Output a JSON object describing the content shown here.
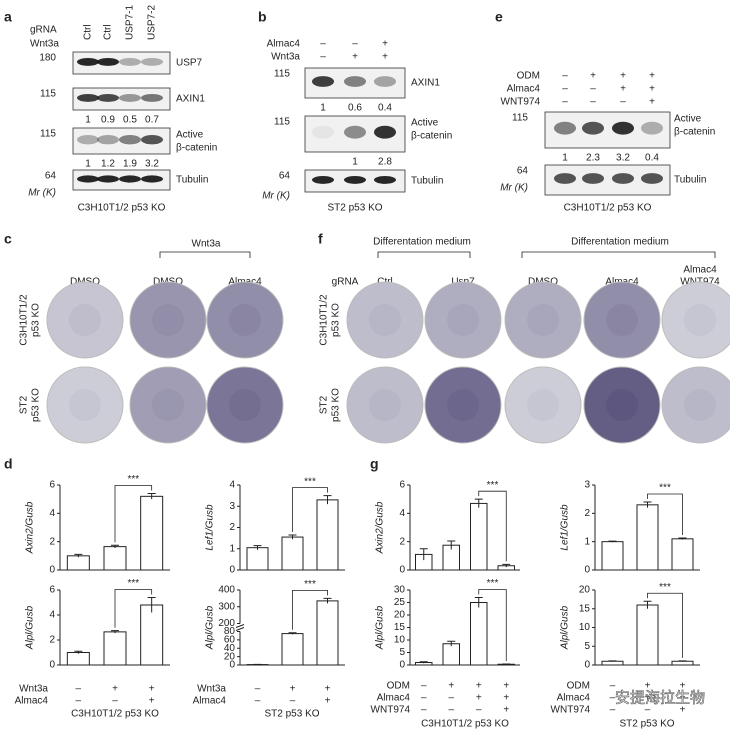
{
  "panel_a": {
    "letter": "a",
    "gRNA_label": "gRNA",
    "lanes": [
      "Ctrl",
      "Ctrl",
      "USP7-1",
      "USP7-2"
    ],
    "treatment_label": "Wnt3a",
    "blots": [
      {
        "marker": 180,
        "protein": "USP7"
      },
      {
        "marker": 115,
        "protein": "AXIN1",
        "quant": [
          1,
          0.9,
          0.5,
          0.7
        ]
      },
      {
        "marker": 115,
        "protein": [
          "Active",
          "β-catenin"
        ],
        "quant": [
          1,
          1.2,
          1.9,
          3.2
        ]
      },
      {
        "marker": 64,
        "protein": "Tubulin"
      }
    ],
    "mr": "Mr (K)",
    "caption": "C3H10T1/2 p53 KO"
  },
  "panel_b": {
    "letter": "b",
    "treatments": [
      {
        "name": "Almac4",
        "signs": [
          "–",
          "–",
          "+"
        ]
      },
      {
        "name": "Wnt3a",
        "signs": [
          "–",
          "+",
          "+"
        ]
      }
    ],
    "blots": [
      {
        "marker": 115,
        "protein": "AXIN1",
        "quant": [
          1,
          0.6,
          0.4
        ]
      },
      {
        "marker": 115,
        "protein": [
          "Active",
          "β-catenin"
        ],
        "quant": [
          null,
          1,
          2.8
        ]
      },
      {
        "marker": 64,
        "protein": "Tubulin"
      }
    ],
    "mr": "Mr (K)",
    "caption": "ST2 p53 KO"
  },
  "panel_e": {
    "letter": "e",
    "treatments": [
      {
        "name": "ODM",
        "signs": [
          "–",
          "+",
          "+",
          "+"
        ]
      },
      {
        "name": "Almac4",
        "signs": [
          "–",
          "–",
          "+",
          "+"
        ]
      },
      {
        "name": "WNT974",
        "signs": [
          "–",
          "–",
          "–",
          "+"
        ]
      }
    ],
    "blots": [
      {
        "marker": 115,
        "protein": [
          "Active",
          "β-catenin"
        ],
        "quant": [
          1,
          2.3,
          3.2,
          0.4
        ]
      },
      {
        "marker": 64,
        "protein": "Tubulin"
      }
    ],
    "mr": "Mr (K)",
    "caption": "C3H10T1/2 p53 KO"
  },
  "panel_c": {
    "letter": "c",
    "group_label": "Wnt3a",
    "columns": [
      "DMSO",
      "DMSO",
      "Almac4"
    ],
    "rows": [
      [
        "C3H10T1/2",
        "p53 KO"
      ],
      [
        "ST2",
        "p53 KO"
      ]
    ]
  },
  "panel_f": {
    "letter": "f",
    "group_labels": [
      "Differentation medium",
      "Differentation medium"
    ],
    "gRNA_label": "gRNA",
    "columns": [
      "Ctrl",
      "Usp7",
      "DMSO",
      "Almac4",
      [
        "Almac4",
        "WNT974"
      ]
    ],
    "rows": [
      [
        "C3H10T1/2",
        "p53 KO"
      ],
      [
        "ST2",
        "p53 KO"
      ]
    ]
  },
  "panel_d": {
    "letter": "d",
    "conditions": [
      {
        "name": "Wnt3a",
        "signs": [
          "–",
          "+",
          "+"
        ]
      },
      {
        "name": "Almac4",
        "signs": [
          "–",
          "–",
          "+"
        ]
      }
    ],
    "captions": [
      "C3H10T1/2 p53 KO",
      "ST2 p53 KO"
    ]
  },
  "panel_g": {
    "letter": "g",
    "conditions_left": [
      {
        "name": "ODM",
        "signs": [
          "–",
          "+",
          "+",
          "+"
        ]
      },
      {
        "name": "Almac4",
        "signs": [
          "–",
          "–",
          "+",
          "+"
        ]
      },
      {
        "name": "WNT974",
        "signs": [
          "–",
          "–",
          "–",
          "+"
        ]
      }
    ],
    "conditions_right": [
      {
        "name": "ODM",
        "signs": [
          "–",
          "+",
          "+"
        ]
      },
      {
        "name": "Almac4",
        "signs": [
          "–",
          "+",
          "+"
        ]
      },
      {
        "name": "WNT974",
        "signs": [
          "–",
          "–",
          "+"
        ]
      }
    ],
    "captions": [
      "C3H10T1/2 p53 KO",
      "ST2 p53 KO"
    ]
  },
  "chart_data": [
    {
      "type": "bar",
      "ylabel": "Axin2/Gusb",
      "ylim": [
        0,
        6
      ],
      "yticks": [
        0,
        2,
        4,
        6
      ],
      "values": [
        1.0,
        1.65,
        5.2
      ],
      "errors": [
        0.1,
        0.1,
        0.2
      ],
      "significance": "***"
    },
    {
      "type": "bar",
      "ylabel": "Lef1/Gusb",
      "ylim": [
        0,
        4
      ],
      "yticks": [
        0,
        1,
        2,
        3,
        4
      ],
      "values": [
        1.05,
        1.55,
        3.3
      ],
      "errors": [
        0.1,
        0.1,
        0.2
      ],
      "significance": "***"
    },
    {
      "type": "bar",
      "ylabel": "Alpl/Gusb",
      "ylim": [
        0,
        6
      ],
      "yticks": [
        0,
        2,
        4,
        6
      ],
      "values": [
        1.0,
        2.65,
        4.8
      ],
      "errors": [
        0.1,
        0.1,
        0.6
      ],
      "significance": "***"
    },
    {
      "type": "bar",
      "ylabel": "Alpl/Gusb",
      "ylim": [
        0,
        400
      ],
      "ybreak": [
        80,
        200
      ],
      "yticks": [
        0,
        20,
        40,
        60,
        80,
        200,
        300,
        400
      ],
      "values": [
        1,
        75,
        335
      ],
      "errors": [
        0.5,
        2,
        15
      ],
      "significance": "***"
    },
    {
      "type": "bar",
      "ylabel": "Axin2/Gusb",
      "ylim": [
        0,
        6
      ],
      "yticks": [
        0,
        2,
        4,
        6
      ],
      "values": [
        1.1,
        1.75,
        4.7,
        0.3
      ],
      "errors": [
        0.4,
        0.3,
        0.3,
        0.1
      ],
      "significance": "***"
    },
    {
      "type": "bar",
      "ylabel": "Lef1/Gusb",
      "ylim": [
        0,
        3
      ],
      "yticks": [
        0,
        1,
        2,
        3
      ],
      "values": [
        1.0,
        2.3,
        1.1
      ],
      "errors": [
        0.02,
        0.1,
        0.03
      ],
      "significance": "***"
    },
    {
      "type": "bar",
      "ylabel": "Alpl/Gusb",
      "ylim": [
        0,
        30
      ],
      "yticks": [
        0,
        5,
        10,
        15,
        20,
        25,
        30
      ],
      "values": [
        1,
        8.5,
        25,
        0.3
      ],
      "errors": [
        0.3,
        1,
        2,
        0.1
      ],
      "significance": "***"
    },
    {
      "type": "bar",
      "ylabel": "Alpl/Gusb",
      "ylim": [
        0,
        20
      ],
      "yticks": [
        0,
        5,
        10,
        15,
        20
      ],
      "values": [
        1,
        16,
        1
      ],
      "errors": [
        0.1,
        1,
        0.1
      ],
      "significance": "***"
    }
  ],
  "watermark": "安提海拉生物"
}
